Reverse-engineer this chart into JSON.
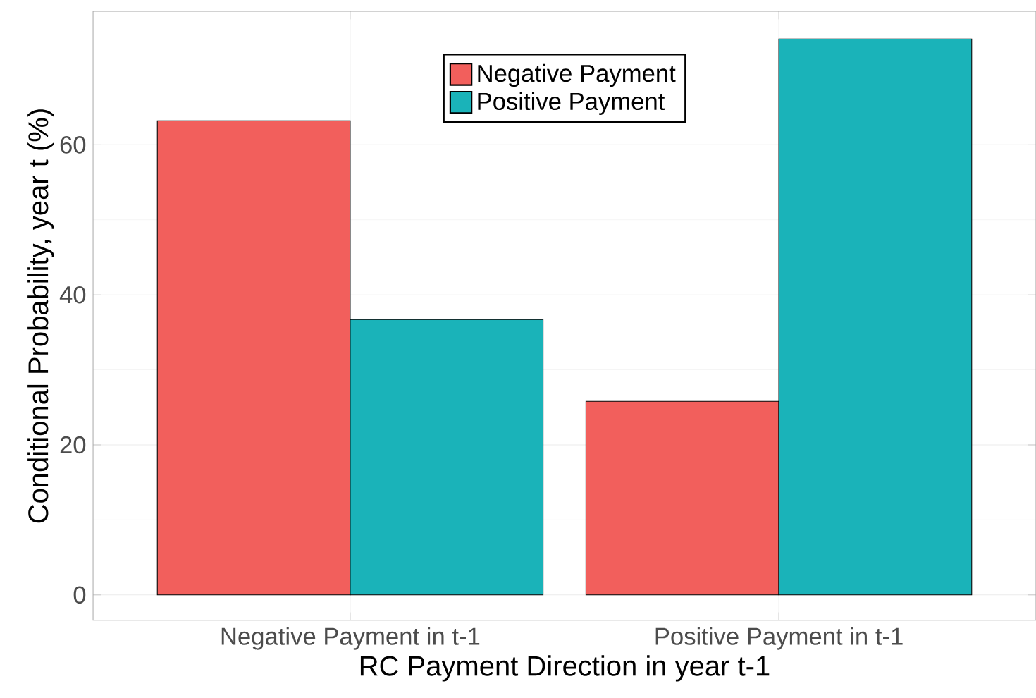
{
  "chart_data": {
    "type": "bar",
    "xlabel": "RC Payment Direction in year t-1",
    "ylabel": "Conditional Probability, year t (%)",
    "categories": [
      "Negative Payment in t-1",
      "Positive Payment in t-1"
    ],
    "series": [
      {
        "name": "Negative Payment",
        "color": "#f25f5c",
        "values": [
          63.2,
          25.8
        ]
      },
      {
        "name": "Positive Payment",
        "color": "#1ab3b9",
        "values": [
          36.7,
          74.1
        ]
      }
    ],
    "ylim": [
      -3.4,
      77.8
    ],
    "yticks": [
      0,
      20,
      40,
      60
    ],
    "grid": true,
    "legend": "top"
  }
}
